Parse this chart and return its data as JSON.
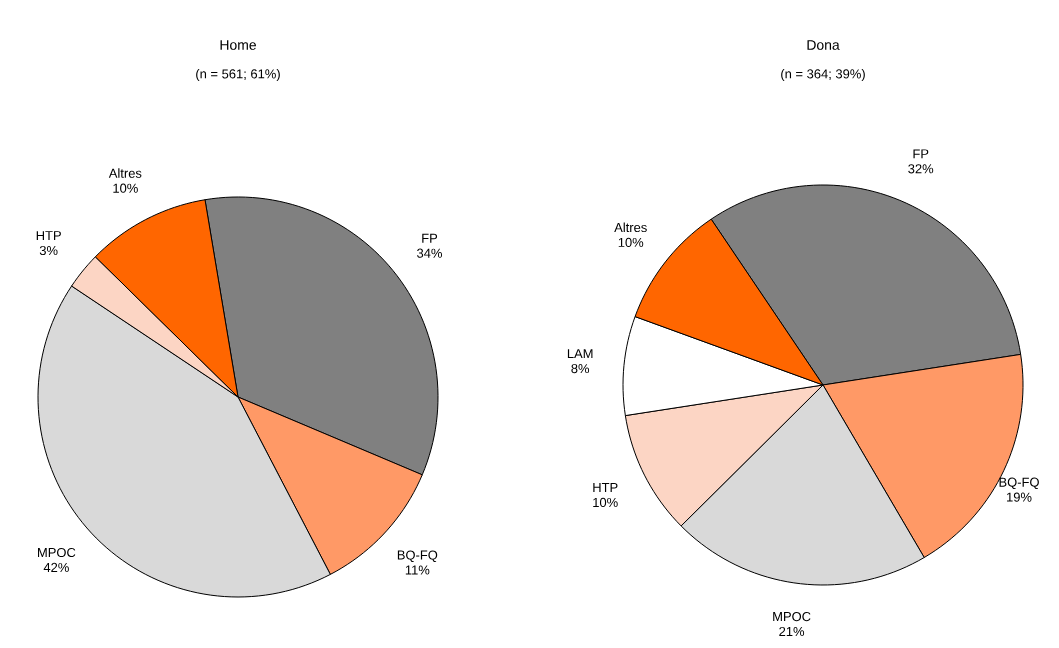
{
  "chart_data": [
    {
      "type": "pie",
      "title": "Home",
      "subtitle": "(n = 561; 61%)",
      "categories": [
        "FP",
        "BQ-FQ",
        "MPOC",
        "HTP",
        "Altres"
      ],
      "values": [
        34,
        11,
        42,
        3,
        10
      ],
      "value_labels": [
        "34%",
        "11%",
        "42%",
        "3%",
        "10%"
      ],
      "colors": [
        "#808080",
        "#ff9966",
        "#d9d9d9",
        "#fcd5c4",
        "#ff6600"
      ]
    },
    {
      "type": "pie",
      "title": "Dona",
      "subtitle": "(n = 364; 39%)",
      "categories": [
        "FP",
        "BQ-FQ",
        "MPOC",
        "HTP",
        "LAM",
        "Altres"
      ],
      "values": [
        32,
        19,
        21,
        10,
        8,
        10
      ],
      "value_labels": [
        "32%",
        "19%",
        "21%",
        "10%",
        "8%",
        "10%"
      ],
      "colors": [
        "#808080",
        "#ff9966",
        "#d9d9d9",
        "#fcd5c4",
        "#ffffff",
        "#ff6600"
      ]
    }
  ]
}
